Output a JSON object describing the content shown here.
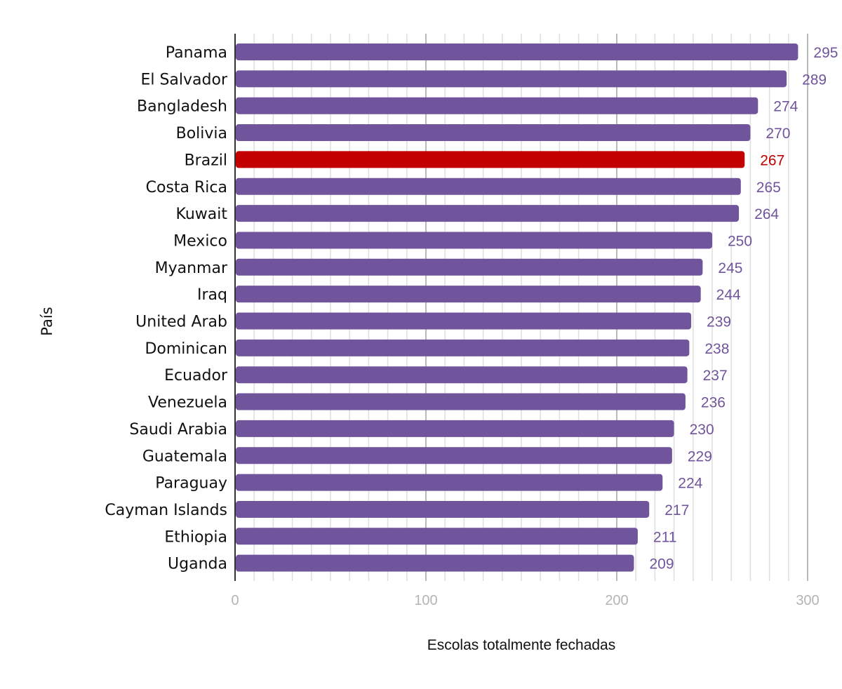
{
  "chart_data": {
    "type": "bar",
    "orientation": "horizontal",
    "xlabel": "Escolas totalmente fechadas",
    "ylabel": "País",
    "xlim": [
      0,
      300
    ],
    "x_ticks": [
      "0",
      "100",
      "200",
      "300"
    ],
    "grid": true,
    "categories": [
      "Panama",
      "El Salvador",
      "Bangladesh",
      "Bolivia",
      "Brazil",
      "Costa Rica",
      "Kuwait",
      "Mexico",
      "Myanmar",
      "Iraq",
      "United Arab",
      "Dominican",
      "Ecuador",
      "Venezuela",
      "Saudi Arabia",
      "Guatemala",
      "Paraguay",
      "Cayman Islands",
      "Ethiopia",
      "Uganda"
    ],
    "values": [
      295,
      289,
      274,
      270,
      267,
      265,
      264,
      250,
      245,
      244,
      239,
      238,
      237,
      236,
      230,
      229,
      224,
      217,
      211,
      209
    ],
    "value_labels": [
      "295",
      "289",
      "274",
      "270",
      "267",
      "265",
      "264",
      "250",
      "245",
      "244",
      "239",
      "238",
      "237",
      "236",
      "230",
      "229",
      "224",
      "217",
      "211",
      "209"
    ],
    "highlight": "Brazil",
    "colors": {
      "bar": "#70559c",
      "highlight": "#c30000",
      "grid_major": "#b9b9b9",
      "grid_minor": "#dedede",
      "axis": "#333333"
    }
  }
}
